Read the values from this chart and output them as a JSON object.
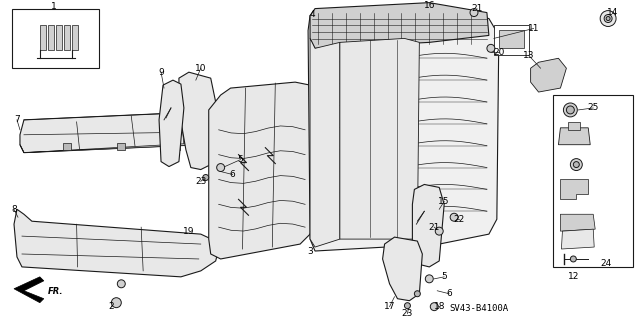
{
  "background_color": "#ffffff",
  "line_color": "#1a1a1a",
  "fill_light": "#e8e8e8",
  "fill_mid": "#d0d0d0",
  "fill_dark": "#b8b8b8",
  "figsize": [
    6.4,
    3.19
  ],
  "dpi": 100,
  "diagram_label": "SV43-B4100A",
  "label_fontsize": 6.5,
  "diagram_fontsize": 6.5
}
